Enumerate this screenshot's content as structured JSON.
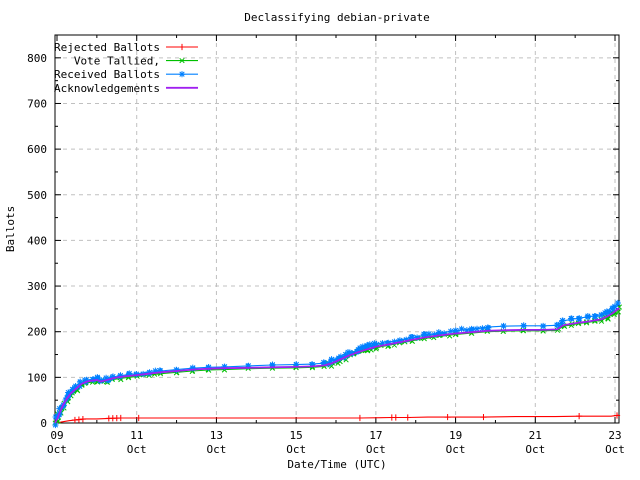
{
  "window": {
    "title": "Declassifying debian-private"
  },
  "chart_data": {
    "type": "line",
    "title": "Declassifying debian-private",
    "xlabel": "Date/Time (UTC)",
    "ylabel": "Ballots",
    "xlim": [
      8.95,
      23.1
    ],
    "ylim": [
      0,
      850
    ],
    "grid": true,
    "legend_position": "top-left",
    "background": "#ffffff",
    "axis_color": "#000000",
    "grid_color": "#c0c0c0",
    "x_ticks": [
      {
        "day": 9,
        "label": "09",
        "sub": "Oct"
      },
      {
        "day": 11,
        "label": "11",
        "sub": "Oct"
      },
      {
        "day": 13,
        "label": "13",
        "sub": "Oct"
      },
      {
        "day": 15,
        "label": "15",
        "sub": "Oct"
      },
      {
        "day": 17,
        "label": "17",
        "sub": "Oct"
      },
      {
        "day": 19,
        "label": "19",
        "sub": "Oct"
      },
      {
        "day": 21,
        "label": "21",
        "sub": "Oct"
      },
      {
        "day": 23,
        "label": "23",
        "sub": "Oct"
      }
    ],
    "x_minor_days": [
      10,
      12,
      14,
      16,
      18,
      20,
      22
    ],
    "y_ticks": [
      0,
      100,
      200,
      300,
      400,
      500,
      600,
      700,
      800
    ],
    "y_minor": [
      50,
      150,
      250,
      350,
      450,
      550,
      650,
      750
    ],
    "series": [
      {
        "name": "Rejected Ballots",
        "color": "#ff0000",
        "marker": "plus",
        "style": "sparse",
        "points": [
          [
            8.95,
            0
          ],
          [
            9.1,
            2
          ],
          [
            9.3,
            5
          ],
          [
            9.5,
            7
          ],
          [
            9.7,
            9
          ],
          [
            10.0,
            9
          ],
          [
            10.3,
            10
          ],
          [
            10.6,
            11
          ],
          [
            11.05,
            11
          ],
          [
            12.0,
            11
          ],
          [
            14.0,
            11
          ],
          [
            16.0,
            11
          ],
          [
            16.6,
            11
          ],
          [
            17.4,
            12
          ],
          [
            17.8,
            12
          ],
          [
            18.3,
            13
          ],
          [
            19.0,
            13
          ],
          [
            19.7,
            13
          ],
          [
            20.5,
            14
          ],
          [
            21.5,
            14
          ],
          [
            22.1,
            15
          ],
          [
            22.9,
            15
          ],
          [
            23.0,
            16
          ],
          [
            23.1,
            17
          ]
        ],
        "marker_days": [
          9.45,
          9.55,
          9.65,
          10.3,
          10.4,
          10.5,
          10.6,
          11.05,
          16.6,
          17.4,
          17.5,
          17.8,
          18.8,
          19.7,
          22.1,
          23.05
        ]
      },
      {
        "name": "Vote Tallied,",
        "color": "#00c000",
        "marker": "cross",
        "style": "dense",
        "points": [
          [
            8.95,
            0
          ],
          [
            9.0,
            6
          ],
          [
            9.05,
            17
          ],
          [
            9.15,
            36
          ],
          [
            9.25,
            51
          ],
          [
            9.35,
            62
          ],
          [
            9.5,
            74
          ],
          [
            9.6,
            82
          ],
          [
            9.75,
            88
          ],
          [
            9.9,
            90
          ],
          [
            10.0,
            91
          ],
          [
            10.1,
            89
          ],
          [
            10.25,
            92
          ],
          [
            10.4,
            95
          ],
          [
            10.6,
            98
          ],
          [
            10.8,
            100
          ],
          [
            11.0,
            102
          ],
          [
            11.3,
            105
          ],
          [
            11.6,
            108
          ],
          [
            12.0,
            111
          ],
          [
            12.4,
            114
          ],
          [
            12.8,
            116
          ],
          [
            13.2,
            117
          ],
          [
            13.8,
            119
          ],
          [
            14.4,
            120
          ],
          [
            15.0,
            121
          ],
          [
            15.4,
            122
          ],
          [
            15.7,
            124
          ],
          [
            15.9,
            129
          ],
          [
            16.1,
            137
          ],
          [
            16.3,
            145
          ],
          [
            16.55,
            153
          ],
          [
            16.8,
            160
          ],
          [
            17.0,
            165
          ],
          [
            17.3,
            170
          ],
          [
            17.6,
            175
          ],
          [
            17.9,
            180
          ],
          [
            18.2,
            185
          ],
          [
            18.6,
            190
          ],
          [
            19.0,
            194
          ],
          [
            19.4,
            197
          ],
          [
            19.8,
            200
          ],
          [
            20.2,
            201
          ],
          [
            20.7,
            202
          ],
          [
            21.2,
            202
          ],
          [
            21.55,
            203
          ],
          [
            21.7,
            212
          ],
          [
            21.9,
            215
          ],
          [
            22.1,
            218
          ],
          [
            22.3,
            220
          ],
          [
            22.5,
            223
          ],
          [
            22.65,
            225
          ],
          [
            22.8,
            231
          ],
          [
            22.95,
            239
          ],
          [
            23.1,
            250
          ]
        ]
      },
      {
        "name": "Received Ballots",
        "color": "#0080ff",
        "marker": "asterisk",
        "style": "dense",
        "points": [
          [
            8.95,
            0
          ],
          [
            9.0,
            10
          ],
          [
            9.05,
            22
          ],
          [
            9.15,
            42
          ],
          [
            9.25,
            57
          ],
          [
            9.35,
            68
          ],
          [
            9.5,
            80
          ],
          [
            9.6,
            88
          ],
          [
            9.75,
            94
          ],
          [
            9.9,
            96
          ],
          [
            10.0,
            97
          ],
          [
            10.1,
            94
          ],
          [
            10.25,
            97
          ],
          [
            10.4,
            101
          ],
          [
            10.6,
            104
          ],
          [
            10.8,
            106
          ],
          [
            11.0,
            108
          ],
          [
            11.3,
            111
          ],
          [
            11.6,
            114
          ],
          [
            12.0,
            117
          ],
          [
            12.4,
            120
          ],
          [
            12.8,
            122
          ],
          [
            13.2,
            123
          ],
          [
            13.8,
            125
          ],
          [
            14.4,
            127
          ],
          [
            15.0,
            128
          ],
          [
            15.4,
            129
          ],
          [
            15.7,
            131
          ],
          [
            15.9,
            136
          ],
          [
            16.1,
            144
          ],
          [
            16.3,
            152
          ],
          [
            16.55,
            160
          ],
          [
            16.8,
            167
          ],
          [
            17.0,
            172
          ],
          [
            17.3,
            177
          ],
          [
            17.6,
            182
          ],
          [
            17.9,
            187
          ],
          [
            18.2,
            192
          ],
          [
            18.6,
            197
          ],
          [
            19.0,
            202
          ],
          [
            19.4,
            206
          ],
          [
            19.8,
            210
          ],
          [
            20.2,
            212
          ],
          [
            20.7,
            213
          ],
          [
            21.2,
            213
          ],
          [
            21.55,
            214
          ],
          [
            21.7,
            224
          ],
          [
            21.9,
            227
          ],
          [
            22.1,
            230
          ],
          [
            22.3,
            232
          ],
          [
            22.5,
            235
          ],
          [
            22.65,
            237
          ],
          [
            22.8,
            243
          ],
          [
            22.95,
            250
          ],
          [
            23.1,
            260
          ]
        ]
      },
      {
        "name": "Acknowledgements",
        "color": "#a020f0",
        "marker": "none",
        "style": "line",
        "points": [
          [
            8.95,
            0
          ],
          [
            9.0,
            8
          ],
          [
            9.05,
            19
          ],
          [
            9.15,
            39
          ],
          [
            9.25,
            54
          ],
          [
            9.35,
            65
          ],
          [
            9.5,
            77
          ],
          [
            9.6,
            85
          ],
          [
            9.75,
            91
          ],
          [
            9.9,
            93
          ],
          [
            10.0,
            94
          ],
          [
            10.1,
            91
          ],
          [
            10.25,
            94
          ],
          [
            10.4,
            98
          ],
          [
            10.6,
            101
          ],
          [
            10.8,
            103
          ],
          [
            11.0,
            105
          ],
          [
            11.3,
            108
          ],
          [
            11.6,
            111
          ],
          [
            12.0,
            114
          ],
          [
            12.4,
            117
          ],
          [
            12.8,
            119
          ],
          [
            13.2,
            120
          ],
          [
            13.8,
            121
          ],
          [
            14.4,
            122
          ],
          [
            15.0,
            123
          ],
          [
            15.4,
            124
          ],
          [
            15.7,
            126
          ],
          [
            15.9,
            131
          ],
          [
            16.1,
            139
          ],
          [
            16.3,
            147
          ],
          [
            16.55,
            155
          ],
          [
            16.8,
            162
          ],
          [
            17.0,
            167
          ],
          [
            17.3,
            172
          ],
          [
            17.6,
            177
          ],
          [
            17.9,
            182
          ],
          [
            18.2,
            187
          ],
          [
            18.6,
            192
          ],
          [
            19.0,
            196
          ],
          [
            19.4,
            199
          ],
          [
            19.8,
            202
          ],
          [
            20.2,
            203
          ],
          [
            20.7,
            204
          ],
          [
            21.2,
            204
          ],
          [
            21.55,
            205
          ],
          [
            21.7,
            214
          ],
          [
            21.9,
            217
          ],
          [
            22.1,
            220
          ],
          [
            22.3,
            222
          ],
          [
            22.5,
            225
          ],
          [
            22.65,
            227
          ],
          [
            22.8,
            233
          ],
          [
            22.95,
            241
          ],
          [
            23.1,
            252
          ]
        ]
      }
    ],
    "legend_order": [
      "Rejected Ballots",
      "Vote Tallied,",
      "Received Ballots",
      "Acknowledgements"
    ]
  }
}
